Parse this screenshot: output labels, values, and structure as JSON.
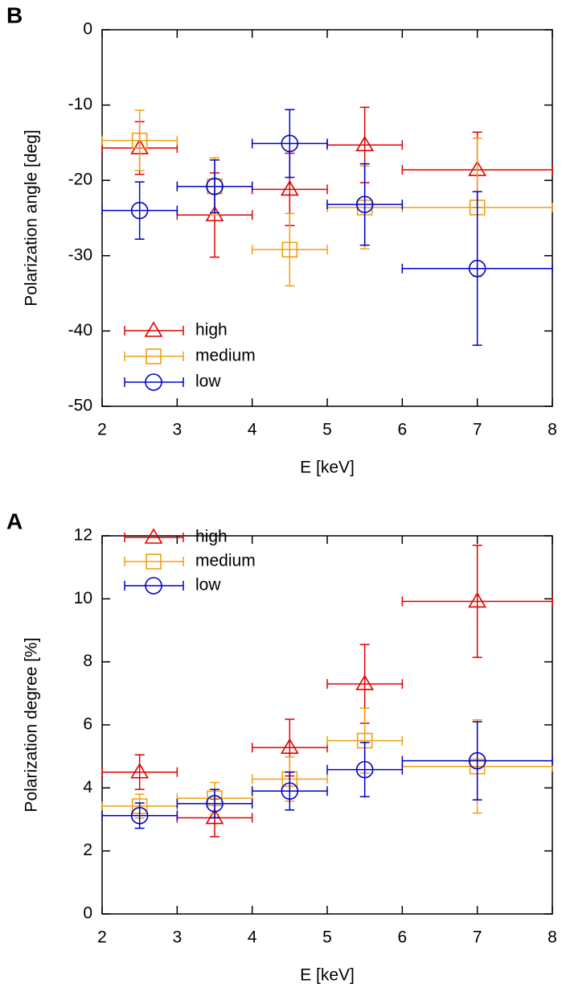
{
  "chart_data": [
    {
      "type": "errorbar",
      "panel_label": "B",
      "xlabel": "E [keV]",
      "ylabel": "Polarization angle [deg]",
      "x": [
        2.5,
        3.5,
        4.5,
        5.5,
        7
      ],
      "xerr": [
        0.5,
        0.5,
        0.5,
        0.5,
        1
      ],
      "xlim": [
        2,
        8
      ],
      "xticks": [
        2,
        3,
        4,
        5,
        6,
        7,
        8
      ],
      "ylim": [
        -50,
        0
      ],
      "yticks": [
        -50,
        -40,
        -30,
        -20,
        -10,
        0
      ],
      "legend": "lower left",
      "series": [
        {
          "name": "high",
          "color": "#e00000",
          "marker": "triangle",
          "values": [
            -15.7,
            -24.6,
            -21.2,
            -15.3,
            -18.6
          ],
          "yerr": [
            3.5,
            5.6,
            4.8,
            5.0,
            5.0
          ]
        },
        {
          "name": "medium",
          "color": "#f0a010",
          "marker": "square",
          "values": [
            -14.7,
            -20.8,
            -29.2,
            -23.6,
            -23.6
          ],
          "yerr": [
            4.0,
            3.8,
            4.8,
            5.5,
            9.2
          ]
        },
        {
          "name": "low",
          "color": "#0000cc",
          "marker": "circle",
          "values": [
            -24.0,
            -20.8,
            -15.1,
            -23.2,
            -31.7
          ],
          "yerr": [
            3.8,
            3.5,
            4.5,
            5.4,
            10.2
          ]
        }
      ]
    },
    {
      "type": "errorbar",
      "panel_label": "A",
      "xlabel": "E [keV]",
      "ylabel": "Polarization degree [%]",
      "x": [
        2.5,
        3.5,
        4.5,
        5.5,
        7
      ],
      "xerr": [
        0.5,
        0.5,
        0.5,
        0.5,
        1
      ],
      "xlim": [
        2,
        8
      ],
      "xticks": [
        2,
        3,
        4,
        5,
        6,
        7,
        8
      ],
      "ylim": [
        0,
        12
      ],
      "yticks": [
        0,
        2,
        4,
        6,
        8,
        10,
        12
      ],
      "legend": "upper left",
      "series": [
        {
          "name": "high",
          "color": "#e00000",
          "marker": "triangle",
          "values": [
            4.5,
            3.05,
            5.28,
            7.3,
            9.92
          ],
          "yerr": [
            0.55,
            0.6,
            0.9,
            1.25,
            1.78
          ]
        },
        {
          "name": "medium",
          "color": "#f0a010",
          "marker": "square",
          "values": [
            3.42,
            3.67,
            4.28,
            5.5,
            4.68
          ],
          "yerr": [
            0.38,
            0.5,
            0.7,
            1.03,
            1.48
          ]
        },
        {
          "name": "low",
          "color": "#0000cc",
          "marker": "circle",
          "values": [
            3.12,
            3.5,
            3.9,
            4.58,
            4.86
          ],
          "yerr": [
            0.4,
            0.45,
            0.6,
            0.86,
            1.24
          ]
        }
      ]
    }
  ]
}
